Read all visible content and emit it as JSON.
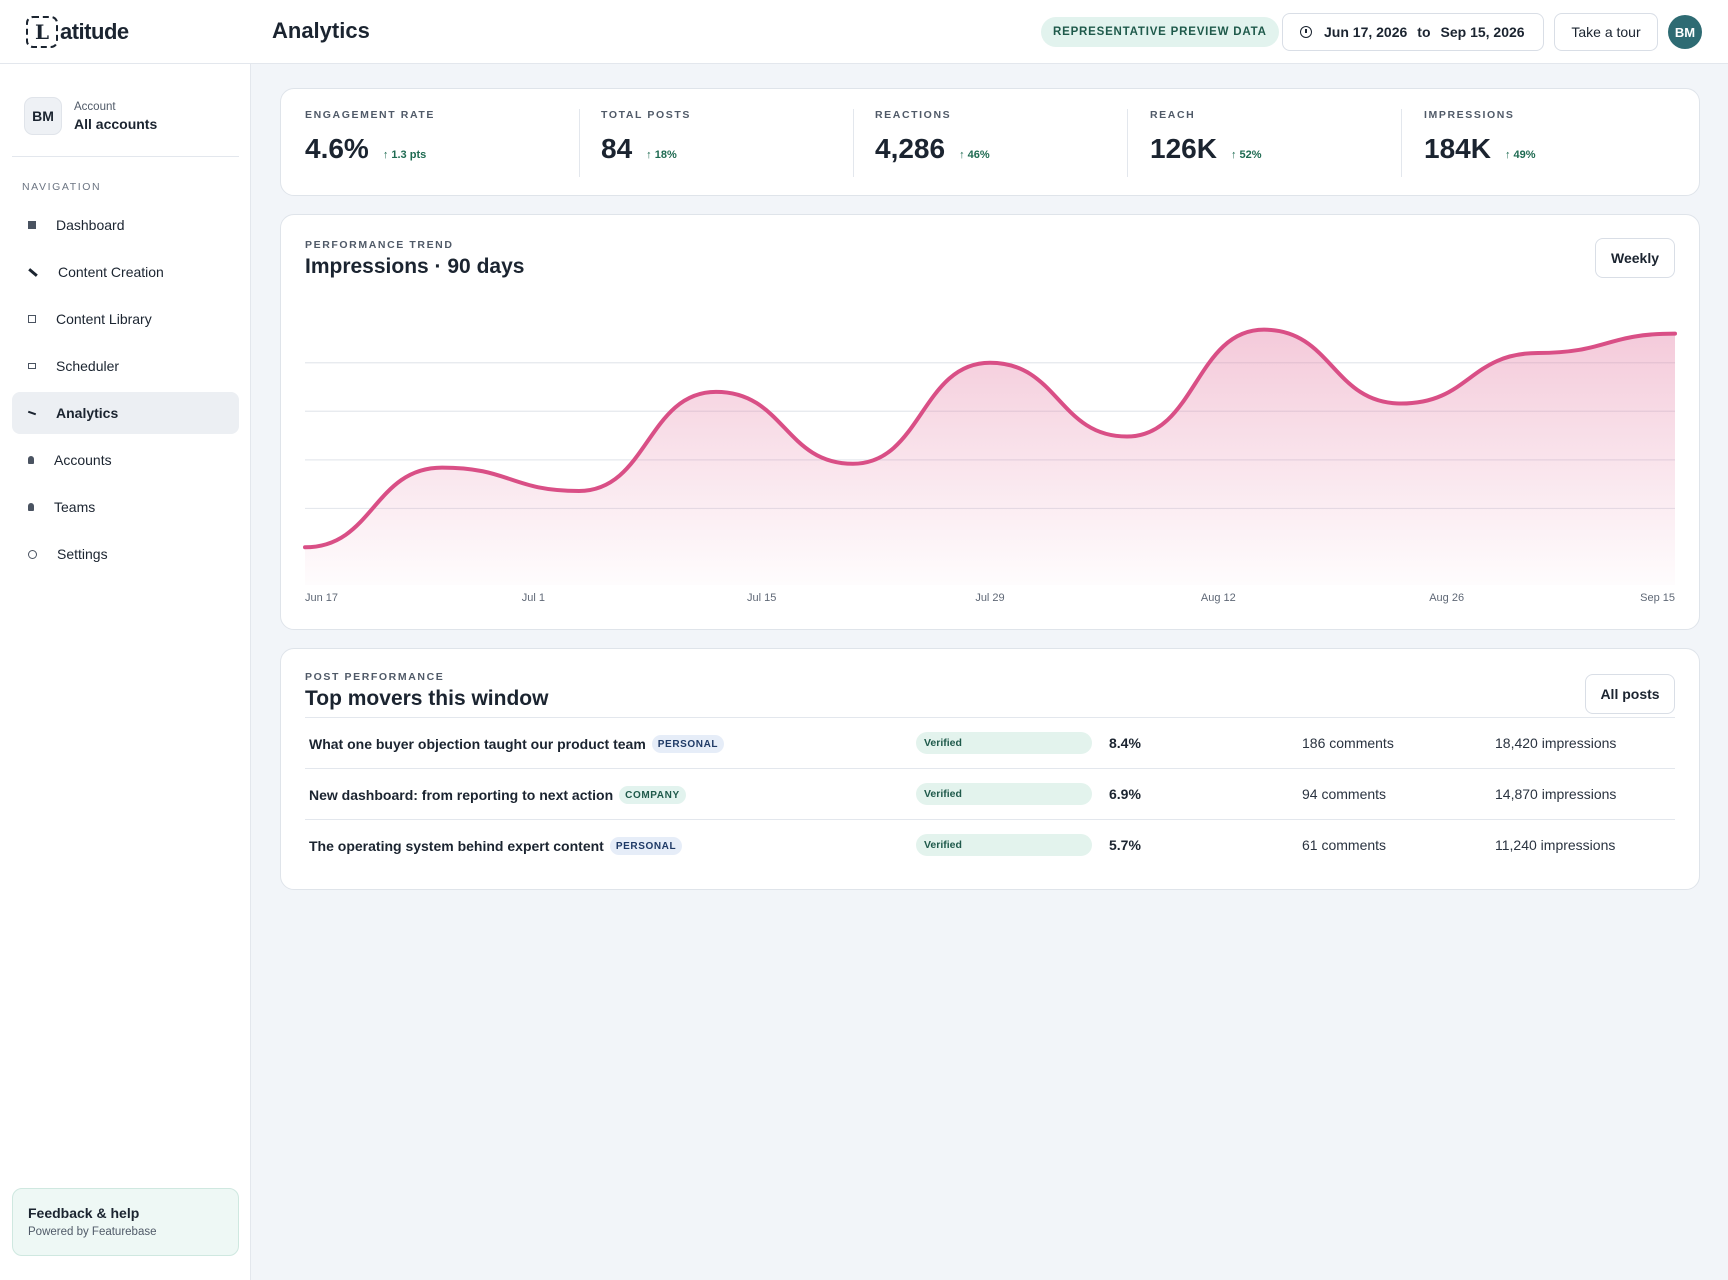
{
  "app": {
    "logo_mark": "L",
    "logo_text": "atitude",
    "page_title": "Analytics",
    "preview_badge": "REPRESENTATIVE PREVIEW DATA",
    "date_from": "Jun 17, 2026",
    "date_to_word": "to",
    "date_to": "Sep 15, 2026",
    "tour_label": "Take a tour",
    "user_initials": "BM"
  },
  "sidebar": {
    "account_initials": "BM",
    "account_label": "Account",
    "account_name": "All accounts",
    "nav_heading": "NAVIGATION",
    "items": [
      {
        "label": "Dashboard",
        "icon": "dashboard-icon"
      },
      {
        "label": "Content Creation",
        "icon": "pen-icon"
      },
      {
        "label": "Content Library",
        "icon": "library-icon"
      },
      {
        "label": "Scheduler",
        "icon": "calendar-icon"
      },
      {
        "label": "Analytics",
        "icon": "analytics-icon",
        "active": true
      },
      {
        "label": "Accounts",
        "icon": "person-icon"
      },
      {
        "label": "Teams",
        "icon": "team-icon"
      },
      {
        "label": "Settings",
        "icon": "gear-icon"
      }
    ],
    "help_title": "Feedback & help",
    "help_sub": "Powered by Featurebase"
  },
  "metrics": [
    {
      "label": "ENGAGEMENT RATE",
      "value": "4.6%",
      "delta": "↑ 1.3 pts"
    },
    {
      "label": "TOTAL POSTS",
      "value": "84",
      "delta": "↑ 18%"
    },
    {
      "label": "REACTIONS",
      "value": "4,286",
      "delta": "↑ 46%"
    },
    {
      "label": "REACH",
      "value": "126K",
      "delta": "↑ 52%"
    },
    {
      "label": "IMPRESSIONS",
      "value": "184K",
      "delta": "↑ 49%"
    }
  ],
  "trend": {
    "eyebrow": "PERFORMANCE TREND",
    "title": "Impressions · 90 days",
    "button": "Weekly"
  },
  "chart_data": {
    "type": "area",
    "x_tick_labels": [
      "Jun 17",
      "Jul 1",
      "Jul 15",
      "Jul 29",
      "Aug 12",
      "Aug 26",
      "Sep 15"
    ],
    "x": [
      0,
      9,
      18,
      27,
      36,
      45,
      54,
      63,
      72,
      81,
      90
    ],
    "values": [
      0.05,
      0.46,
      0.34,
      0.85,
      0.48,
      1.0,
      0.62,
      1.17,
      0.79,
      1.05,
      1.15
    ],
    "ylim": [
      0,
      1.4
    ],
    "grid": true,
    "color": "#d94f86"
  },
  "posts": {
    "eyebrow": "POST PERFORMANCE",
    "title": "Top movers this window",
    "button": "All posts",
    "rows": [
      {
        "title": "What one buyer objection taught our product team",
        "tag": "PERSONAL",
        "tag_type": "personal",
        "status": "Verified",
        "rate": "8.4%",
        "comments": "186 comments",
        "impressions": "18,420 impressions"
      },
      {
        "title": "New dashboard: from reporting to next action",
        "tag": "COMPANY",
        "tag_type": "company",
        "status": "Verified",
        "rate": "6.9%",
        "comments": "94 comments",
        "impressions": "14,870 impressions"
      },
      {
        "title": "The operating system behind expert content",
        "tag": "PERSONAL",
        "tag_type": "personal",
        "status": "Verified",
        "rate": "5.7%",
        "comments": "61 comments",
        "impressions": "11,240 impressions"
      }
    ]
  }
}
